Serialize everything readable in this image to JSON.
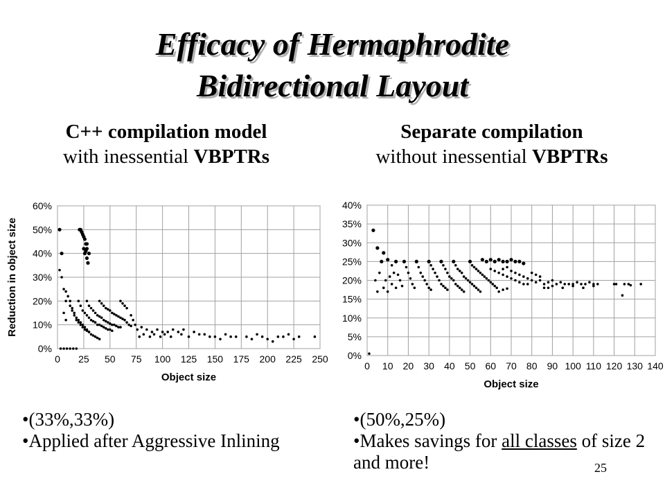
{
  "slide": {
    "title_line1": "Efficacy of Hermaphrodite",
    "title_line2": "Bidirectional Layout",
    "page_number": "25"
  },
  "left": {
    "subtitle_bold": "C++ compilation model",
    "subtitle_plain": "with inessential ",
    "subtitle_bold2": "VBPTRs",
    "bullet1": "(33%,33%)",
    "bullet2": "Applied after Aggressive Inlining"
  },
  "right": {
    "subtitle_bold": "Separate compilation",
    "subtitle_plain": "without inessential ",
    "subtitle_bold2": "VBPTRs",
    "bullet1": "(50%,25%)",
    "bullet2_a": "Makes savings for ",
    "bullet2_u": "all classes",
    "bullet2_b": " of size 2 and more!"
  },
  "chart_data": [
    {
      "type": "scatter",
      "xlabel": "Object size",
      "ylabel": "Reduction in object size",
      "xlim": [
        0,
        250
      ],
      "ylim": [
        0,
        60
      ],
      "xticks": [
        "0",
        "25",
        "50",
        "75",
        "100",
        "125",
        "150",
        "175",
        "200",
        "225",
        "250"
      ],
      "yticks": [
        "0%",
        "10%",
        "20%",
        "30%",
        "40%",
        "50%",
        "60%"
      ],
      "grid": true,
      "points": [
        [
          2,
          50
        ],
        [
          2,
          33
        ],
        [
          4,
          40
        ],
        [
          4,
          30
        ],
        [
          6,
          25
        ],
        [
          6,
          15
        ],
        [
          8,
          20
        ],
        [
          8,
          12
        ],
        [
          3,
          0
        ],
        [
          6,
          0
        ],
        [
          9,
          0
        ],
        [
          12,
          0
        ],
        [
          15,
          0
        ],
        [
          18,
          0
        ],
        [
          21,
          50
        ],
        [
          22,
          50
        ],
        [
          23,
          49
        ],
        [
          24,
          48
        ],
        [
          25,
          47
        ],
        [
          26,
          46
        ],
        [
          27,
          44
        ],
        [
          28,
          42
        ],
        [
          25,
          42
        ],
        [
          27,
          41
        ],
        [
          28,
          38
        ],
        [
          26,
          40
        ],
        [
          29,
          36
        ],
        [
          30,
          40
        ],
        [
          28,
          44
        ],
        [
          8,
          24
        ],
        [
          10,
          22
        ],
        [
          12,
          20
        ],
        [
          14,
          17
        ],
        [
          16,
          15
        ],
        [
          18,
          13
        ],
        [
          20,
          12
        ],
        [
          22,
          11
        ],
        [
          24,
          10
        ],
        [
          26,
          9
        ],
        [
          28,
          8
        ],
        [
          30,
          7
        ],
        [
          32,
          6
        ],
        [
          34,
          5.5
        ],
        [
          36,
          5
        ],
        [
          38,
          4.5
        ],
        [
          40,
          4
        ],
        [
          12,
          18
        ],
        [
          14,
          16
        ],
        [
          16,
          14
        ],
        [
          18,
          12
        ],
        [
          20,
          11
        ],
        [
          22,
          10
        ],
        [
          24,
          9
        ],
        [
          26,
          8
        ],
        [
          28,
          7.5
        ],
        [
          30,
          7
        ],
        [
          20,
          20
        ],
        [
          22,
          18
        ],
        [
          24,
          16
        ],
        [
          26,
          15
        ],
        [
          28,
          14
        ],
        [
          30,
          13
        ],
        [
          32,
          12
        ],
        [
          34,
          11.5
        ],
        [
          36,
          11
        ],
        [
          38,
          10
        ],
        [
          40,
          10
        ],
        [
          42,
          9.5
        ],
        [
          44,
          9
        ],
        [
          46,
          8.5
        ],
        [
          48,
          8
        ],
        [
          50,
          8
        ],
        [
          52,
          7.5
        ],
        [
          28,
          20
        ],
        [
          30,
          18
        ],
        [
          32,
          17
        ],
        [
          34,
          16
        ],
        [
          36,
          15
        ],
        [
          38,
          14
        ],
        [
          40,
          13.5
        ],
        [
          42,
          13
        ],
        [
          44,
          12
        ],
        [
          46,
          11.5
        ],
        [
          48,
          11
        ],
        [
          50,
          10.5
        ],
        [
          52,
          10
        ],
        [
          54,
          10
        ],
        [
          56,
          9.5
        ],
        [
          58,
          9
        ],
        [
          60,
          9
        ],
        [
          40,
          20
        ],
        [
          42,
          19
        ],
        [
          44,
          18
        ],
        [
          46,
          17
        ],
        [
          48,
          16.5
        ],
        [
          50,
          16
        ],
        [
          52,
          15
        ],
        [
          54,
          14.5
        ],
        [
          56,
          14
        ],
        [
          58,
          13.5
        ],
        [
          60,
          13
        ],
        [
          62,
          12.5
        ],
        [
          64,
          12
        ],
        [
          66,
          11
        ],
        [
          68,
          10
        ],
        [
          70,
          9.5
        ],
        [
          60,
          20
        ],
        [
          62,
          19
        ],
        [
          64,
          18
        ],
        [
          66,
          17
        ],
        [
          70,
          14
        ],
        [
          72,
          12
        ],
        [
          74,
          10
        ],
        [
          76,
          8
        ],
        [
          80,
          9
        ],
        [
          85,
          8
        ],
        [
          90,
          7
        ],
        [
          95,
          8
        ],
        [
          100,
          7
        ],
        [
          105,
          7
        ],
        [
          110,
          8
        ],
        [
          115,
          7
        ],
        [
          120,
          8
        ],
        [
          130,
          7
        ],
        [
          140,
          6
        ],
        [
          150,
          5
        ],
        [
          160,
          6
        ],
        [
          170,
          5
        ],
        [
          180,
          5
        ],
        [
          190,
          6
        ],
        [
          200,
          4
        ],
        [
          210,
          5
        ],
        [
          220,
          6
        ],
        [
          230,
          5
        ],
        [
          245,
          5
        ],
        [
          78,
          5
        ],
        [
          82,
          6
        ],
        [
          88,
          5
        ],
        [
          92,
          6
        ],
        [
          98,
          5
        ],
        [
          102,
          6
        ],
        [
          108,
          5
        ],
        [
          118,
          6
        ],
        [
          125,
          5
        ],
        [
          135,
          6
        ],
        [
          145,
          5
        ],
        [
          155,
          4
        ],
        [
          165,
          5
        ],
        [
          185,
          4
        ],
        [
          195,
          5
        ],
        [
          205,
          3
        ],
        [
          215,
          5
        ],
        [
          225,
          4
        ]
      ]
    },
    {
      "type": "scatter",
      "xlabel": "Object size",
      "ylabel": "",
      "xlim": [
        0,
        140
      ],
      "ylim": [
        0,
        40
      ],
      "xticks": [
        "0",
        "10",
        "20",
        "30",
        "40",
        "50",
        "60",
        "70",
        "80",
        "90",
        "100",
        "110",
        "120",
        "130",
        "140"
      ],
      "yticks": [
        "0%",
        "5%",
        "10%",
        "15%",
        "20%",
        "25%",
        "30%",
        "35%",
        "40%"
      ],
      "grid": true,
      "points": [
        [
          1,
          0.5
        ],
        [
          3,
          33.3
        ],
        [
          4,
          20
        ],
        [
          5,
          28.6
        ],
        [
          5,
          17
        ],
        [
          6,
          22
        ],
        [
          7,
          25
        ],
        [
          8,
          27.3
        ],
        [
          8,
          18
        ],
        [
          9,
          20
        ],
        [
          10,
          25.5
        ],
        [
          10,
          17
        ],
        [
          11,
          21
        ],
        [
          12,
          24
        ],
        [
          12,
          19
        ],
        [
          13,
          22
        ],
        [
          14,
          25
        ],
        [
          14,
          18
        ],
        [
          15,
          21.5
        ],
        [
          16,
          20
        ],
        [
          17,
          18.5
        ],
        [
          18,
          25
        ],
        [
          19,
          23.5
        ],
        [
          20,
          22
        ],
        [
          21,
          20.5
        ],
        [
          22,
          19
        ],
        [
          23,
          18
        ],
        [
          24,
          25
        ],
        [
          25,
          23.5
        ],
        [
          26,
          22
        ],
        [
          27,
          21
        ],
        [
          28,
          20
        ],
        [
          29,
          19
        ],
        [
          30,
          18
        ],
        [
          31,
          17.5
        ],
        [
          30,
          25
        ],
        [
          31,
          24
        ],
        [
          32,
          23
        ],
        [
          33,
          22
        ],
        [
          34,
          21
        ],
        [
          35,
          20
        ],
        [
          36,
          19
        ],
        [
          37,
          18.5
        ],
        [
          38,
          18
        ],
        [
          39,
          17.5
        ],
        [
          36,
          25
        ],
        [
          37,
          24
        ],
        [
          38,
          23
        ],
        [
          39,
          22
        ],
        [
          40,
          21
        ],
        [
          41,
          20.5
        ],
        [
          42,
          20
        ],
        [
          43,
          19
        ],
        [
          44,
          18.5
        ],
        [
          45,
          18
        ],
        [
          46,
          17.5
        ],
        [
          47,
          17
        ],
        [
          42,
          25
        ],
        [
          43,
          24
        ],
        [
          44,
          23
        ],
        [
          45,
          22.5
        ],
        [
          46,
          22
        ],
        [
          47,
          21
        ],
        [
          48,
          20.5
        ],
        [
          49,
          20
        ],
        [
          50,
          19.5
        ],
        [
          51,
          19
        ],
        [
          52,
          18.5
        ],
        [
          53,
          18
        ],
        [
          54,
          17.5
        ],
        [
          55,
          17
        ],
        [
          50,
          25
        ],
        [
          51,
          24
        ],
        [
          52,
          23.5
        ],
        [
          53,
          23
        ],
        [
          54,
          22.5
        ],
        [
          55,
          22
        ],
        [
          56,
          21.5
        ],
        [
          57,
          21
        ],
        [
          58,
          20.5
        ],
        [
          59,
          20
        ],
        [
          60,
          19.5
        ],
        [
          61,
          19
        ],
        [
          62,
          18.5
        ],
        [
          63,
          18
        ],
        [
          56,
          25.5
        ],
        [
          58,
          25
        ],
        [
          60,
          25.5
        ],
        [
          62,
          25
        ],
        [
          64,
          25.5
        ],
        [
          66,
          25
        ],
        [
          68,
          25
        ],
        [
          70,
          25.5
        ],
        [
          72,
          25
        ],
        [
          74,
          25
        ],
        [
          76,
          24.5
        ],
        [
          60,
          23
        ],
        [
          62,
          22.5
        ],
        [
          64,
          22
        ],
        [
          66,
          21.5
        ],
        [
          68,
          21
        ],
        [
          70,
          20.5
        ],
        [
          72,
          20
        ],
        [
          74,
          19.5
        ],
        [
          76,
          19
        ],
        [
          78,
          19
        ],
        [
          80,
          20
        ],
        [
          82,
          19.5
        ],
        [
          84,
          20
        ],
        [
          86,
          19
        ],
        [
          88,
          19.5
        ],
        [
          90,
          20
        ],
        [
          92,
          19
        ],
        [
          94,
          19.5
        ],
        [
          96,
          19
        ],
        [
          98,
          19
        ],
        [
          100,
          19
        ],
        [
          102,
          19.5
        ],
        [
          104,
          19
        ],
        [
          106,
          19
        ],
        [
          108,
          19.5
        ],
        [
          110,
          19
        ],
        [
          112,
          19
        ],
        [
          120,
          19
        ],
        [
          121,
          19
        ],
        [
          124,
          16
        ],
        [
          125,
          19
        ],
        [
          127,
          19
        ],
        [
          128,
          18.7
        ],
        [
          133,
          19
        ],
        [
          66,
          23
        ],
        [
          68,
          23.5
        ],
        [
          70,
          22.5
        ],
        [
          72,
          22
        ],
        [
          74,
          21.5
        ],
        [
          76,
          21
        ],
        [
          78,
          20.5
        ],
        [
          80,
          22
        ],
        [
          82,
          21.5
        ],
        [
          84,
          21
        ],
        [
          86,
          18
        ],
        [
          88,
          18
        ],
        [
          90,
          18.5
        ],
        [
          95,
          18
        ],
        [
          100,
          18.5
        ],
        [
          105,
          18
        ],
        [
          110,
          18.5
        ],
        [
          64,
          17
        ],
        [
          66,
          17.5
        ],
        [
          68,
          17.8
        ]
      ]
    }
  ]
}
